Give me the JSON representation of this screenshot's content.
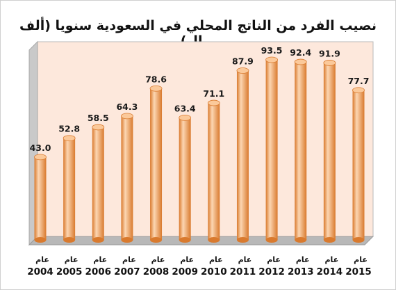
{
  "chart_data": {
    "type": "bar",
    "title": "نصيب الفرد من الناتج المحلي في السعودية سنويا (ألف ريال)",
    "categories": [
      "2004",
      "2005",
      "2006",
      "2007",
      "2008",
      "2009",
      "2010",
      "2011",
      "2012",
      "2013",
      "2014",
      "2015"
    ],
    "category_prefix": "عام",
    "values": [
      43.0,
      52.8,
      58.5,
      64.3,
      78.6,
      63.4,
      71.1,
      87.9,
      93.5,
      92.4,
      91.9,
      77.7
    ],
    "value_labels": [
      "43.0",
      "52.8",
      "58.5",
      "64.3",
      "78.6",
      "63.4",
      "71.1",
      "87.9",
      "93.5",
      "92.4",
      "91.9",
      "77.7"
    ],
    "ylim": [
      0,
      100
    ],
    "grid": false,
    "legend": "none",
    "colors": {
      "bar_main": "#f0a060",
      "bar_light": "#fcd6b2",
      "bar_dark": "#d97a2e",
      "bar_top": "#fbc99a",
      "plot_bg": "#fde8dc",
      "side_wall": "#c9c9c9",
      "floor": "#b8b8b8"
    }
  }
}
